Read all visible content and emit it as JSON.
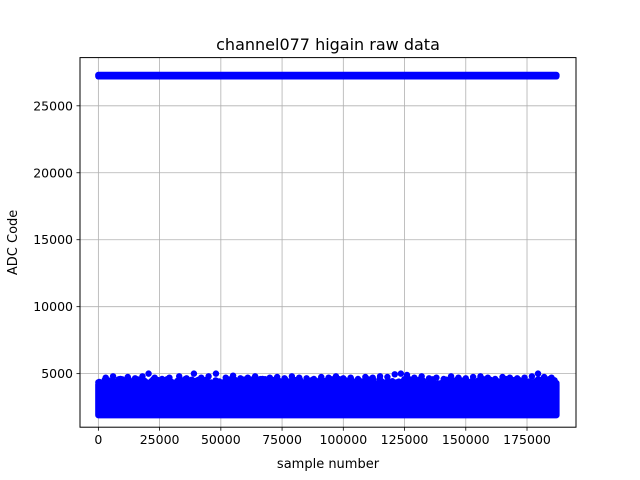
{
  "chart_data": {
    "type": "scatter",
    "title": "channel077 higain raw data",
    "xlabel": "sample number",
    "ylabel": "ADC Code",
    "xlim": [
      -7500,
      195000
    ],
    "ylim": [
      1000,
      28600
    ],
    "xticks": [
      0,
      25000,
      50000,
      75000,
      100000,
      125000,
      150000,
      175000
    ],
    "yticks": [
      5000,
      10000,
      15000,
      20000,
      25000
    ],
    "grid": true,
    "marker_color": "#0000ff",
    "series": [
      {
        "description": "saturated samples",
        "x_range": [
          0,
          187000
        ],
        "y_values": [
          27200,
          27300
        ]
      },
      {
        "description": "baseline band",
        "x_range": [
          0,
          187000
        ],
        "y_band": [
          1900,
          4200
        ]
      },
      {
        "description": "upper outliers",
        "points": [
          [
            3000,
            4700
          ],
          [
            6000,
            4800
          ],
          [
            9000,
            4600
          ],
          [
            12000,
            4750
          ],
          [
            15000,
            4650
          ],
          [
            18000,
            4800
          ],
          [
            20500,
            5000
          ],
          [
            23000,
            4700
          ],
          [
            26000,
            4600
          ],
          [
            29000,
            4700
          ],
          [
            33000,
            4800
          ],
          [
            36000,
            4650
          ],
          [
            39000,
            5000
          ],
          [
            42000,
            4700
          ],
          [
            45000,
            4800
          ],
          [
            48000,
            5000
          ],
          [
            52000,
            4700
          ],
          [
            55000,
            4850
          ],
          [
            58000,
            4650
          ],
          [
            61000,
            4700
          ],
          [
            64000,
            4800
          ],
          [
            67000,
            4600
          ],
          [
            70000,
            4700
          ],
          [
            73000,
            4750
          ],
          [
            76000,
            4650
          ],
          [
            79000,
            4800
          ],
          [
            82000,
            4700
          ],
          [
            85000,
            4650
          ],
          [
            88000,
            4600
          ],
          [
            91000,
            4750
          ],
          [
            94000,
            4700
          ],
          [
            97000,
            4800
          ],
          [
            100000,
            4650
          ],
          [
            103000,
            4700
          ],
          [
            106000,
            4600
          ],
          [
            109000,
            4750
          ],
          [
            112000,
            4700
          ],
          [
            115000,
            4800
          ],
          [
            118000,
            4750
          ],
          [
            121000,
            4950
          ],
          [
            123500,
            5000
          ],
          [
            126000,
            4900
          ],
          [
            129000,
            4700
          ],
          [
            132000,
            4800
          ],
          [
            135000,
            4650
          ],
          [
            138000,
            4700
          ],
          [
            141000,
            4600
          ],
          [
            144000,
            4800
          ],
          [
            147000,
            4700
          ],
          [
            150000,
            4650
          ],
          [
            153000,
            4750
          ],
          [
            156000,
            4800
          ],
          [
            159000,
            4700
          ],
          [
            162000,
            4600
          ],
          [
            165000,
            4750
          ],
          [
            168000,
            4700
          ],
          [
            171000,
            4650
          ],
          [
            174000,
            4700
          ],
          [
            177000,
            4800
          ],
          [
            179500,
            5000
          ],
          [
            182000,
            4750
          ],
          [
            185000,
            4700
          ]
        ]
      }
    ]
  }
}
